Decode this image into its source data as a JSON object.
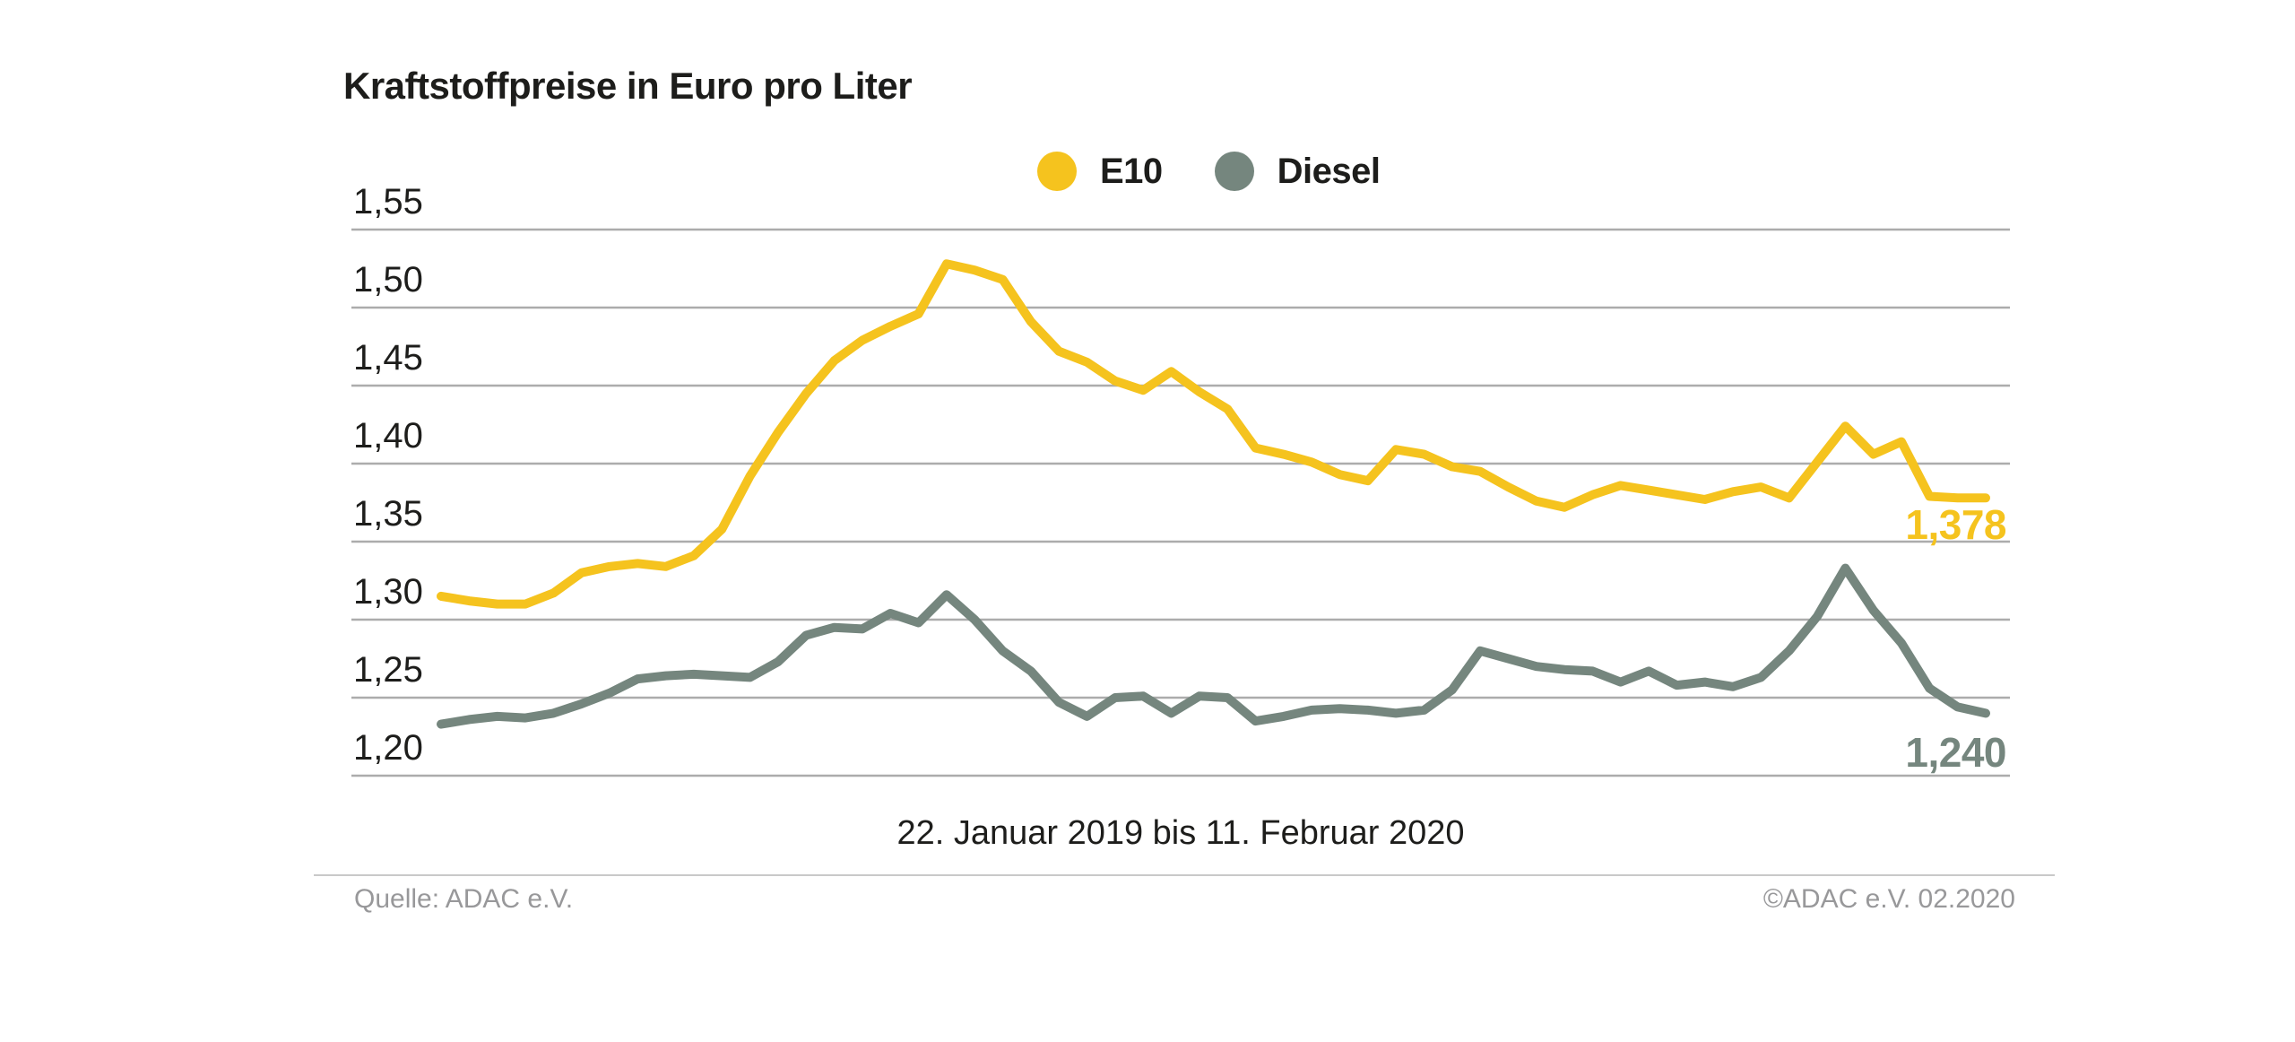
{
  "title": "Kraftstoffpreise in Euro pro Liter",
  "legend": {
    "items": [
      {
        "label": "E10",
        "color": "#f5c31e"
      },
      {
        "label": "Diesel",
        "color": "#75867e"
      }
    ]
  },
  "caption": "22. Januar 2019 bis 11. Februar 2020",
  "footer": {
    "source": "Quelle: ADAC e.V.",
    "copyright": "©ADAC e.V.  02.2020"
  },
  "colors": {
    "e10": "#f5c31e",
    "diesel": "#75867e",
    "gridline": "#acacac",
    "text": "#1d1d1b",
    "footer_text": "#98989a"
  },
  "chart_data": {
    "type": "line",
    "title": "Kraftstoffpreise in Euro pro Liter",
    "xlabel": "22. Januar 2019 bis 11. Februar 2020",
    "ylabel": "Euro pro Liter",
    "ylim": [
      1.2,
      1.55
    ],
    "y_tick_step": 0.05,
    "y_ticks": [
      "1,55",
      "1,50",
      "1,45",
      "1,40",
      "1,35",
      "1,30",
      "1,25",
      "1,20"
    ],
    "grid": true,
    "legend_position": "top-center",
    "x_range": "weekly values, 22 Jan 2019 - 11 Feb 2020",
    "series": [
      {
        "name": "E10",
        "color": "#f5c31e",
        "end_label": "1,378",
        "end_value": 1.378,
        "values": [
          1.315,
          1.312,
          1.31,
          1.31,
          1.317,
          1.33,
          1.334,
          1.336,
          1.334,
          1.341,
          1.358,
          1.392,
          1.42,
          1.445,
          1.466,
          1.479,
          1.488,
          1.496,
          1.528,
          1.524,
          1.518,
          1.491,
          1.472,
          1.465,
          1.453,
          1.447,
          1.459,
          1.446,
          1.435,
          1.41,
          1.406,
          1.401,
          1.393,
          1.389,
          1.409,
          1.406,
          1.398,
          1.395,
          1.385,
          1.376,
          1.372,
          1.38,
          1.386,
          1.383,
          1.38,
          1.377,
          1.382,
          1.385,
          1.378,
          1.401,
          1.424,
          1.406,
          1.414,
          1.379,
          1.378,
          1.378
        ]
      },
      {
        "name": "Diesel",
        "color": "#75867e",
        "end_label": "1,240",
        "end_value": 1.24,
        "values": [
          1.233,
          1.236,
          1.238,
          1.237,
          1.24,
          1.246,
          1.253,
          1.262,
          1.264,
          1.265,
          1.264,
          1.263,
          1.273,
          1.29,
          1.295,
          1.294,
          1.304,
          1.298,
          1.316,
          1.3,
          1.28,
          1.267,
          1.247,
          1.238,
          1.25,
          1.251,
          1.24,
          1.251,
          1.25,
          1.235,
          1.238,
          1.242,
          1.243,
          1.242,
          1.24,
          1.242,
          1.255,
          1.28,
          1.275,
          1.27,
          1.268,
          1.267,
          1.26,
          1.267,
          1.258,
          1.26,
          1.257,
          1.263,
          1.28,
          1.302,
          1.333,
          1.306,
          1.285,
          1.256,
          1.244,
          1.24
        ]
      }
    ]
  }
}
